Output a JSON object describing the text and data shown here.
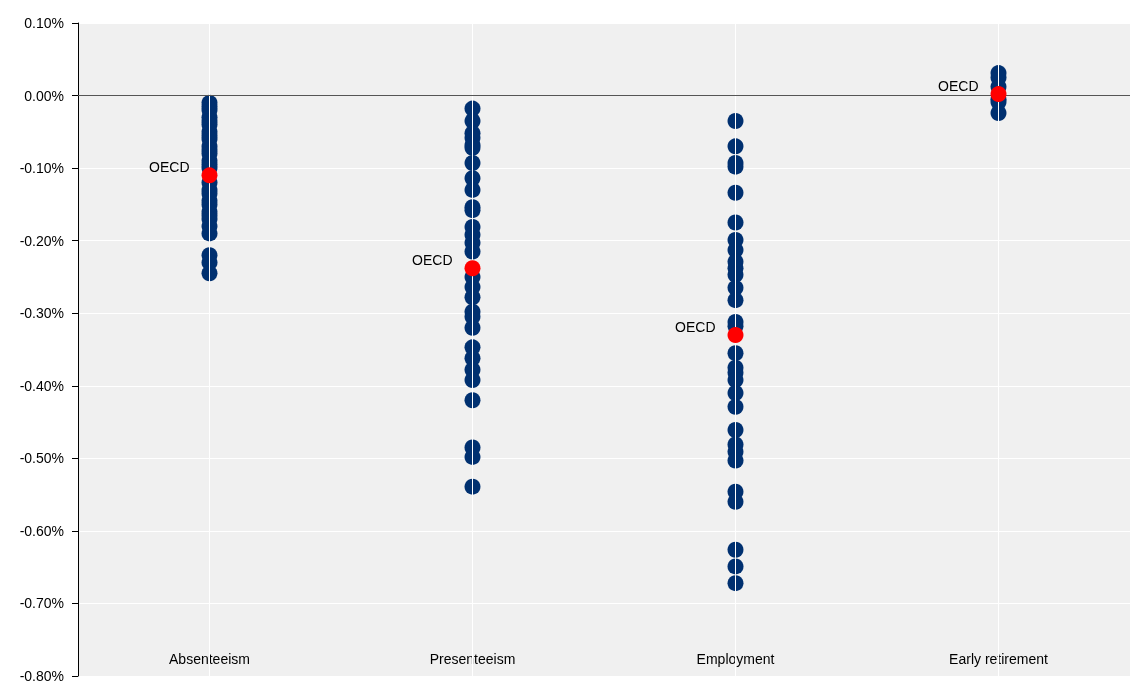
{
  "chart_data": {
    "type": "scatter",
    "categories": [
      "Absenteeism",
      "Presenteeism",
      "Employment",
      "Early retirement"
    ],
    "ylim": [
      -0.8,
      0.1
    ],
    "yticks": [
      {
        "value": 0.1,
        "label": "0.10%"
      },
      {
        "value": 0,
        "label": "0.00%"
      },
      {
        "value": -0.1,
        "label": "-0.10%"
      },
      {
        "value": -0.2,
        "label": "-0.20%"
      },
      {
        "value": -0.3,
        "label": "-0.30%"
      },
      {
        "value": -0.4,
        "label": "-0.40%"
      },
      {
        "value": -0.5,
        "label": "-0.50%"
      },
      {
        "value": -0.6,
        "label": "-0.60%"
      },
      {
        "value": -0.7,
        "label": "-0.70%"
      },
      {
        "value": -0.8,
        "label": "-0.80%"
      }
    ],
    "grid": true,
    "legend": false,
    "marker": "circle",
    "ref_lines": [
      {
        "axis": "y",
        "value": 0,
        "color": "#555555"
      }
    ],
    "series": [
      {
        "color": "#003070",
        "x": [
          "Absenteeism",
          "Absenteeism",
          "Absenteeism",
          "Absenteeism",
          "Absenteeism",
          "Absenteeism",
          "Absenteeism",
          "Absenteeism",
          "Absenteeism",
          "Absenteeism",
          "Absenteeism",
          "Absenteeism",
          "Absenteeism",
          "Absenteeism",
          "Absenteeism",
          "Absenteeism",
          "Absenteeism",
          "Absenteeism",
          "Absenteeism",
          "Absenteeism",
          "Absenteeism",
          "Absenteeism",
          "Absenteeism",
          "Absenteeism",
          "Absenteeism",
          "Absenteeism",
          "Absenteeism",
          "Absenteeism",
          "Absenteeism",
          "Presenteeism",
          "Presenteeism",
          "Presenteeism",
          "Presenteeism",
          "Presenteeism",
          "Presenteeism",
          "Presenteeism",
          "Presenteeism",
          "Presenteeism",
          "Presenteeism",
          "Presenteeism",
          "Presenteeism",
          "Presenteeism",
          "Presenteeism",
          "Presenteeism",
          "Presenteeism",
          "Presenteeism",
          "Presenteeism",
          "Presenteeism",
          "Presenteeism",
          "Presenteeism",
          "Presenteeism",
          "Presenteeism",
          "Presenteeism",
          "Presenteeism",
          "Presenteeism",
          "Presenteeism",
          "Presenteeism",
          "Presenteeism",
          "Employment",
          "Employment",
          "Employment",
          "Employment",
          "Employment",
          "Employment",
          "Employment",
          "Employment",
          "Employment",
          "Employment",
          "Employment",
          "Employment",
          "Employment",
          "Employment",
          "Employment",
          "Employment",
          "Employment",
          "Employment",
          "Employment",
          "Employment",
          "Employment",
          "Employment",
          "Employment",
          "Employment",
          "Employment",
          "Employment",
          "Employment",
          "Employment",
          "Employment",
          "Employment",
          "Early retirement",
          "Early retirement",
          "Early retirement",
          "Early retirement",
          "Early retirement",
          "Early retirement",
          "Early retirement"
        ],
        "values": [
          -0.01,
          -0.015,
          -0.02,
          -0.03,
          -0.035,
          -0.04,
          -0.05,
          -0.055,
          -0.06,
          -0.07,
          -0.075,
          -0.08,
          -0.09,
          -0.095,
          -0.1,
          null,
          -0.12,
          -0.13,
          -0.135,
          -0.145,
          -0.15,
          -0.16,
          -0.165,
          -0.17,
          -0.18,
          -0.19,
          -0.22,
          -0.23,
          -0.245,
          -0.018,
          -0.035,
          -0.052,
          -0.058,
          -0.068,
          -0.072,
          -0.093,
          -0.114,
          -0.13,
          -0.154,
          -0.158,
          -0.181,
          -0.192,
          -0.203,
          -0.215,
          -0.25,
          -0.264,
          -0.278,
          -0.298,
          -0.305,
          -0.32,
          -0.347,
          -0.362,
          -0.378,
          -0.392,
          -0.42,
          -0.485,
          -0.498,
          -0.539,
          -0.035,
          -0.07,
          -0.093,
          -0.098,
          -0.134,
          -0.175,
          -0.199,
          -0.213,
          -0.229,
          -0.238,
          -0.247,
          -0.265,
          -0.282,
          -0.312,
          -0.318,
          -0.355,
          -0.375,
          -0.382,
          -0.392,
          -0.41,
          -0.429,
          -0.461,
          -0.481,
          -0.491,
          -0.503,
          -0.546,
          -0.56,
          -0.626,
          -0.649,
          -0.672,
          0.031,
          0.025,
          0.012,
          null,
          -0.005,
          -0.009,
          -0.024
        ]
      },
      {
        "name": "OECD",
        "color": "#ff0000",
        "x": [
          "Absenteeism",
          "Presenteeism",
          "Employment",
          "Early retirement"
        ],
        "values": [
          -0.11,
          -0.238,
          -0.33,
          0.002
        ]
      }
    ]
  }
}
